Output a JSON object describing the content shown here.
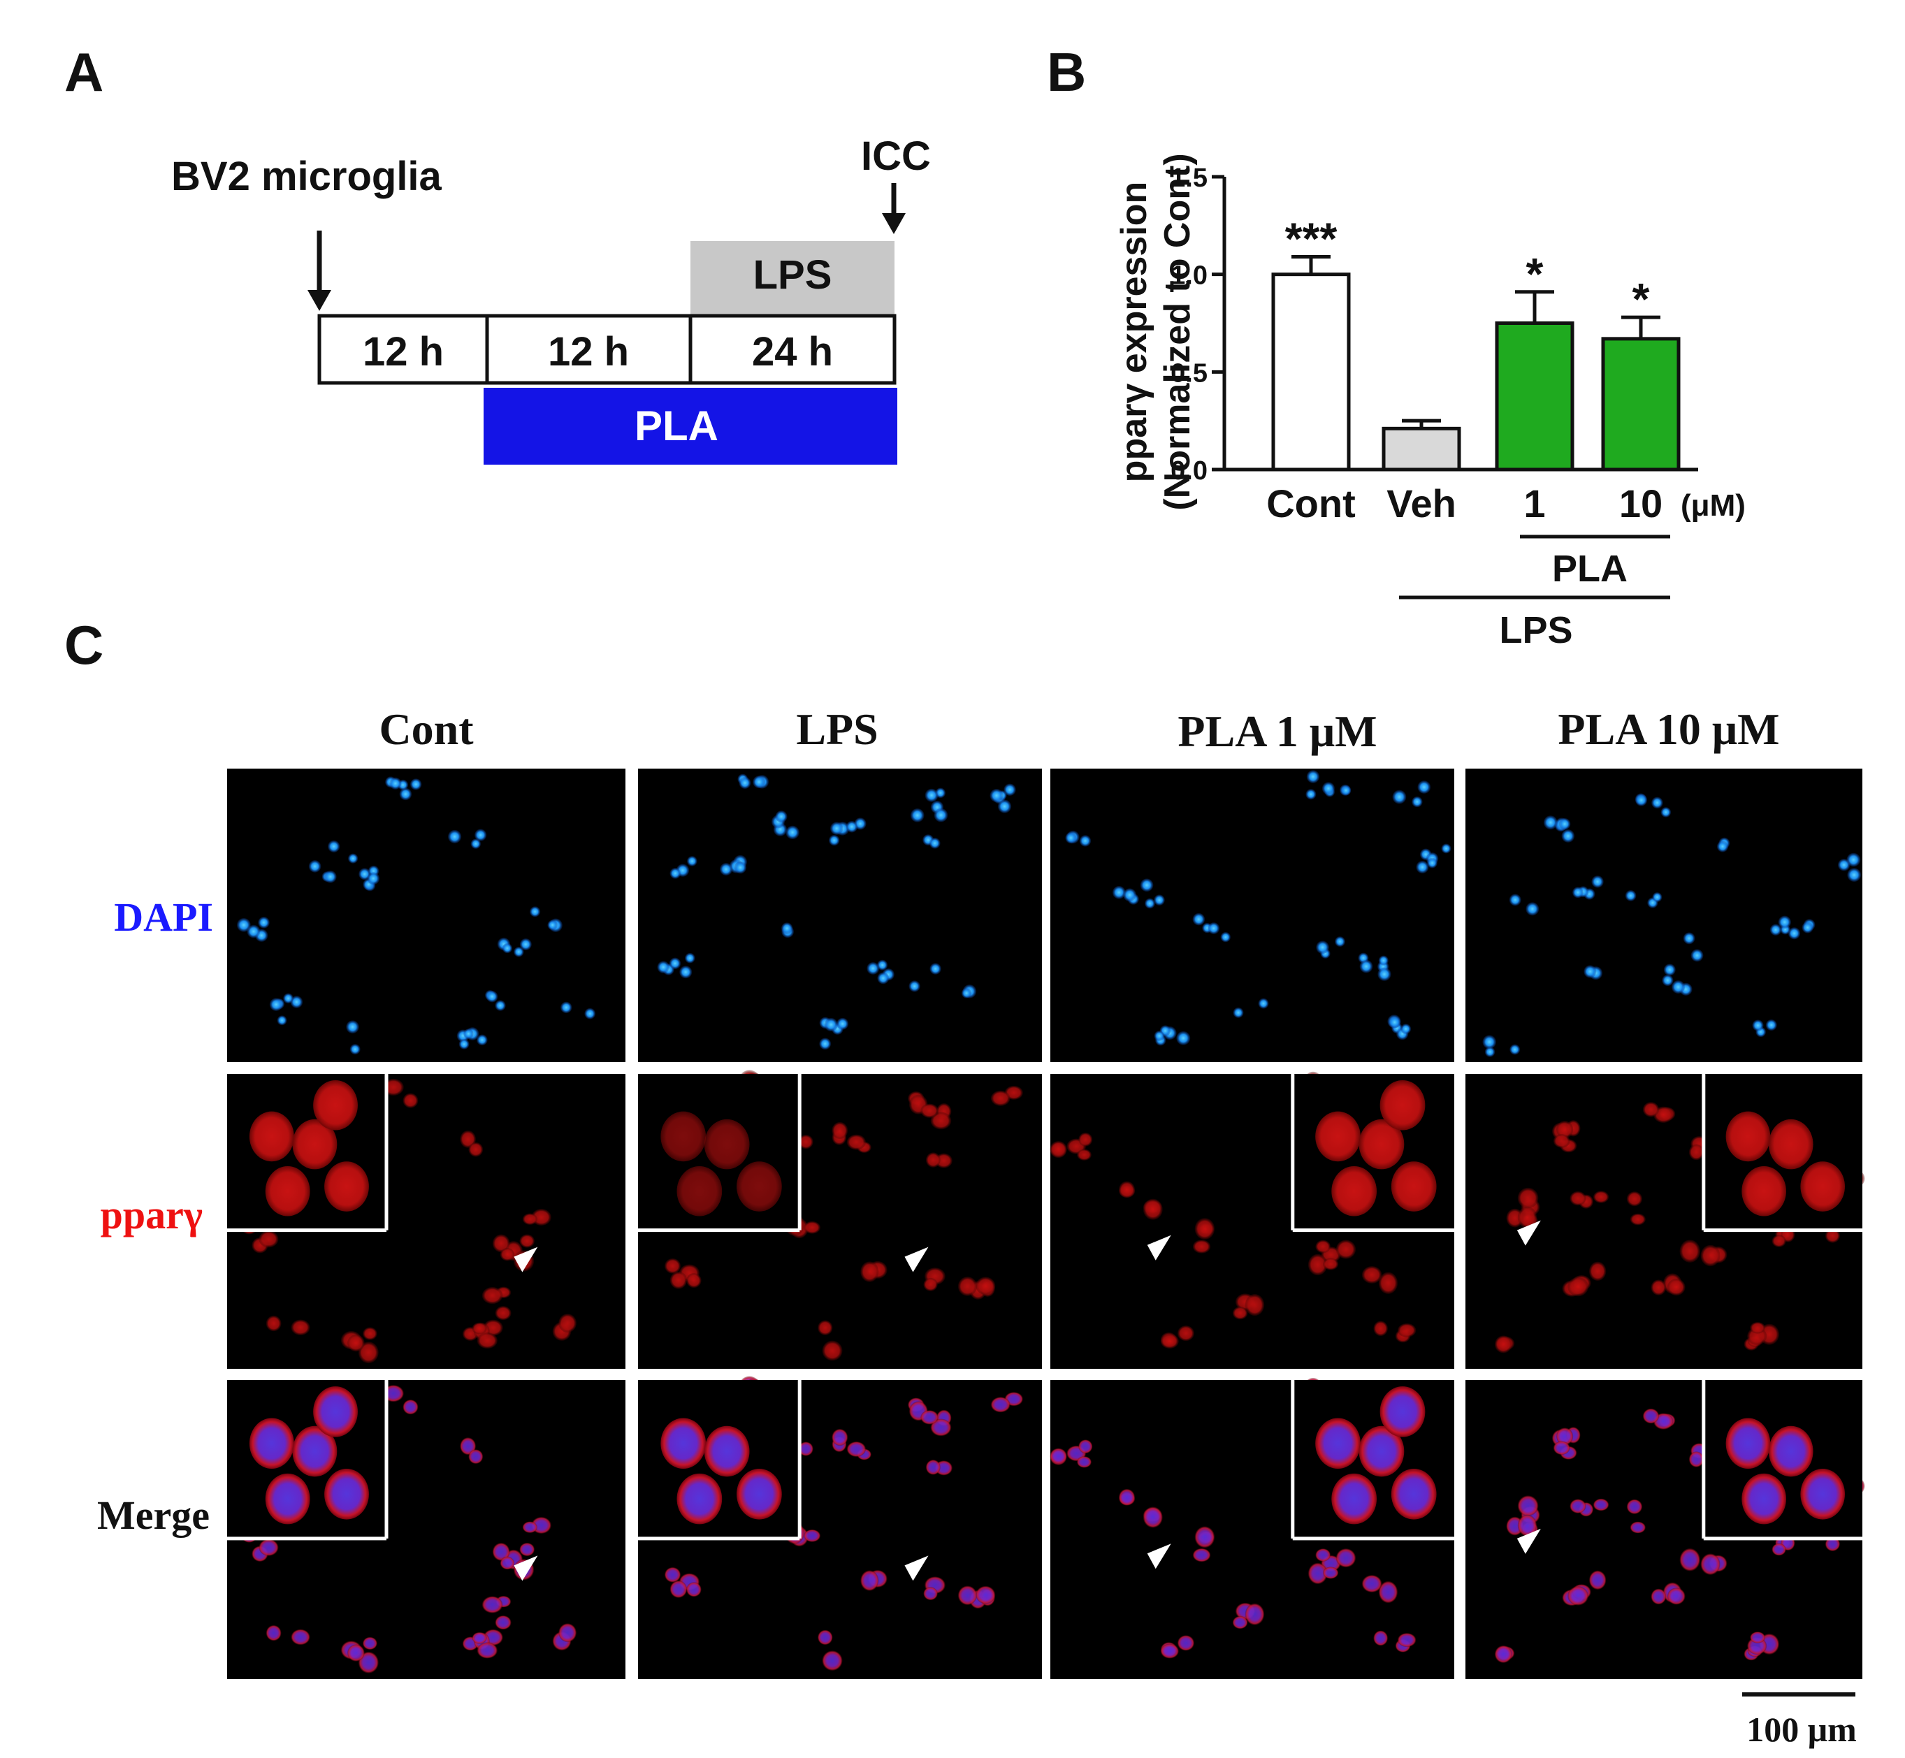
{
  "panels": {
    "a": {
      "letter": "A",
      "cell_label": "BV2 microglia",
      "icc_label": "ICC",
      "timeline": [
        "12 h",
        "12 h",
        "24 h"
      ],
      "lps_label": "LPS",
      "pla_label": "PLA"
    },
    "b": {
      "letter": "B",
      "ylabel_line1": "pparγ expression",
      "ylabel_line2": "(Normalized to Cont)",
      "unit_label": "(μM)",
      "pla_group_label": "PLA",
      "lps_group_label": "LPS"
    },
    "c": {
      "letter": "C",
      "columns": [
        "Cont",
        "LPS",
        "PLA 1 μM",
        "PLA 10 μM"
      ],
      "rows": [
        "DAPI",
        "pparγ",
        "Merge"
      ],
      "scale_bar_label": "100 μm"
    }
  },
  "chart_data": {
    "type": "bar",
    "categories": [
      "Cont",
      "Veh",
      "1",
      "10"
    ],
    "values": [
      1.0,
      0.21,
      0.75,
      0.67
    ],
    "errors": [
      0.09,
      0.04,
      0.16,
      0.11
    ],
    "significance": [
      "***",
      "",
      "*",
      "*"
    ],
    "bar_colors": [
      "#ffffff",
      "#d9d9d9",
      "#1faa1f",
      "#1faa1f"
    ],
    "ylim": [
      0,
      1.5
    ],
    "yticks": [
      "0.0",
      "0.5",
      "1.0",
      "1.5"
    ],
    "ylabel": "pparγ expression (Normalized to Cont)"
  },
  "colors": {
    "pla_bar": "#1414e6",
    "lps_bar": "#c8c8c8",
    "dapi_label": "#1a1aff",
    "ppar_label": "#ee1111",
    "merge_label": "#111111"
  }
}
